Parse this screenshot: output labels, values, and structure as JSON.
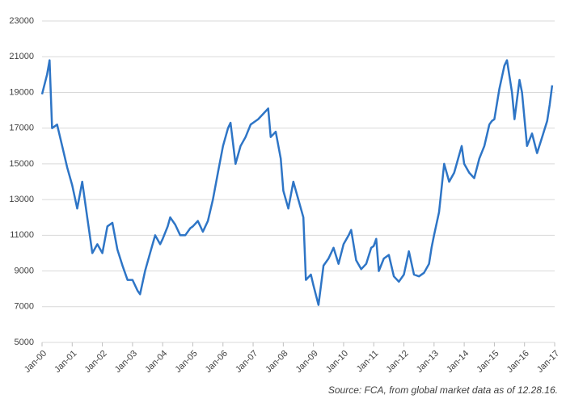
{
  "chart_data": {
    "type": "line",
    "x": [
      "2000-01",
      "2000-03",
      "2000-04",
      "2000-05",
      "2000-07",
      "2000-09",
      "2000-11",
      "2001-01",
      "2001-03",
      "2001-05",
      "2001-07",
      "2001-09",
      "2001-11",
      "2002-01",
      "2002-03",
      "2002-05",
      "2002-07",
      "2002-09",
      "2002-11",
      "2003-01",
      "2003-03",
      "2003-04",
      "2003-06",
      "2003-08",
      "2003-10",
      "2003-12",
      "2004-01",
      "2004-03",
      "2004-04",
      "2004-06",
      "2004-08",
      "2004-10",
      "2004-12",
      "2005-01",
      "2005-03",
      "2005-05",
      "2005-07",
      "2005-09",
      "2005-11",
      "2006-01",
      "2006-03",
      "2006-04",
      "2006-06",
      "2006-08",
      "2006-10",
      "2006-12",
      "2007-01",
      "2007-03",
      "2007-05",
      "2007-07",
      "2007-08",
      "2007-10",
      "2007-12",
      "2008-01",
      "2008-03",
      "2008-05",
      "2008-07",
      "2008-09",
      "2008-10",
      "2008-12",
      "2009-01",
      "2009-03",
      "2009-05",
      "2009-07",
      "2009-09",
      "2009-11",
      "2010-01",
      "2010-03",
      "2010-04",
      "2010-06",
      "2010-08",
      "2010-10",
      "2010-12",
      "2011-01",
      "2011-02",
      "2011-03",
      "2011-05",
      "2011-07",
      "2011-09",
      "2011-11",
      "2012-01",
      "2012-03",
      "2012-05",
      "2012-07",
      "2012-09",
      "2012-11",
      "2012-12",
      "2013-01",
      "2013-03",
      "2013-05",
      "2013-07",
      "2013-09",
      "2013-11",
      "2013-12",
      "2014-01",
      "2014-03",
      "2014-05",
      "2014-07",
      "2014-09",
      "2014-11",
      "2014-12",
      "2015-01",
      "2015-03",
      "2015-05",
      "2015-06",
      "2015-08",
      "2015-09",
      "2015-11",
      "2015-12",
      "2016-01",
      "2016-02",
      "2016-04",
      "2016-06",
      "2016-08",
      "2016-10",
      "2016-11",
      "2016-12"
    ],
    "series": [
      {
        "color": "#2e75c6",
        "values": [
          18900,
          20000,
          20800,
          17000,
          17200,
          16000,
          14800,
          13800,
          12500,
          14000,
          12000,
          10000,
          10500,
          10000,
          11500,
          11700,
          10200,
          9300,
          8500,
          8500,
          7900,
          7700,
          9000,
          10000,
          11000,
          10500,
          10800,
          11500,
          12000,
          11600,
          11000,
          11000,
          11400,
          11500,
          11800,
          11200,
          11800,
          13000,
          14500,
          16000,
          17000,
          17300,
          15000,
          16000,
          16500,
          17200,
          17300,
          17500,
          17800,
          18100,
          16500,
          16800,
          15300,
          13500,
          12500,
          14000,
          13000,
          12000,
          8500,
          8800,
          8200,
          7100,
          9300,
          9700,
          10300,
          9400,
          10500,
          11000,
          11300,
          9600,
          9100,
          9400,
          10300,
          10400,
          10800,
          9000,
          9700,
          9900,
          8700,
          8400,
          8800,
          10100,
          8800,
          8700,
          8900,
          9400,
          10300,
          11000,
          12300,
          15000,
          14000,
          14500,
          15500,
          16000,
          15000,
          14500,
          14200,
          15300,
          16000,
          17200,
          17400,
          17500,
          19200,
          20500,
          20800,
          19000,
          17500,
          19700,
          19000,
          17500,
          16000,
          16700,
          15600,
          16500,
          17400,
          18300,
          19400
        ]
      }
    ],
    "xlim": [
      "2000-01",
      "2017-01"
    ],
    "xticks": [
      {
        "value": "2000-01",
        "label": "Jan-00"
      },
      {
        "value": "2001-01",
        "label": "Jan-01"
      },
      {
        "value": "2002-01",
        "label": "Jan-02"
      },
      {
        "value": "2003-01",
        "label": "Jan-03"
      },
      {
        "value": "2004-01",
        "label": "Jan-04"
      },
      {
        "value": "2005-01",
        "label": "Jan-05"
      },
      {
        "value": "2006-01",
        "label": "Jan-06"
      },
      {
        "value": "2007-01",
        "label": "Jan-07"
      },
      {
        "value": "2008-01",
        "label": "Jan-08"
      },
      {
        "value": "2009-01",
        "label": "Jan-09"
      },
      {
        "value": "2010-01",
        "label": "Jan-10"
      },
      {
        "value": "2011-01",
        "label": "Jan-11"
      },
      {
        "value": "2012-01",
        "label": "Jan-12"
      },
      {
        "value": "2013-01",
        "label": "Jan-13"
      },
      {
        "value": "2014-01",
        "label": "Jan-14"
      },
      {
        "value": "2015-01",
        "label": "Jan-15"
      },
      {
        "value": "2016-01",
        "label": "Jan-16"
      },
      {
        "value": "2017-01",
        "label": "Jan-17"
      }
    ],
    "ylim": [
      5000,
      23000
    ],
    "yticks": [
      5000,
      7000,
      9000,
      11000,
      13000,
      15000,
      17000,
      19000,
      21000,
      23000
    ],
    "grid": true,
    "annotation": "Source: FCA, from global market data as of 12.28.16."
  }
}
